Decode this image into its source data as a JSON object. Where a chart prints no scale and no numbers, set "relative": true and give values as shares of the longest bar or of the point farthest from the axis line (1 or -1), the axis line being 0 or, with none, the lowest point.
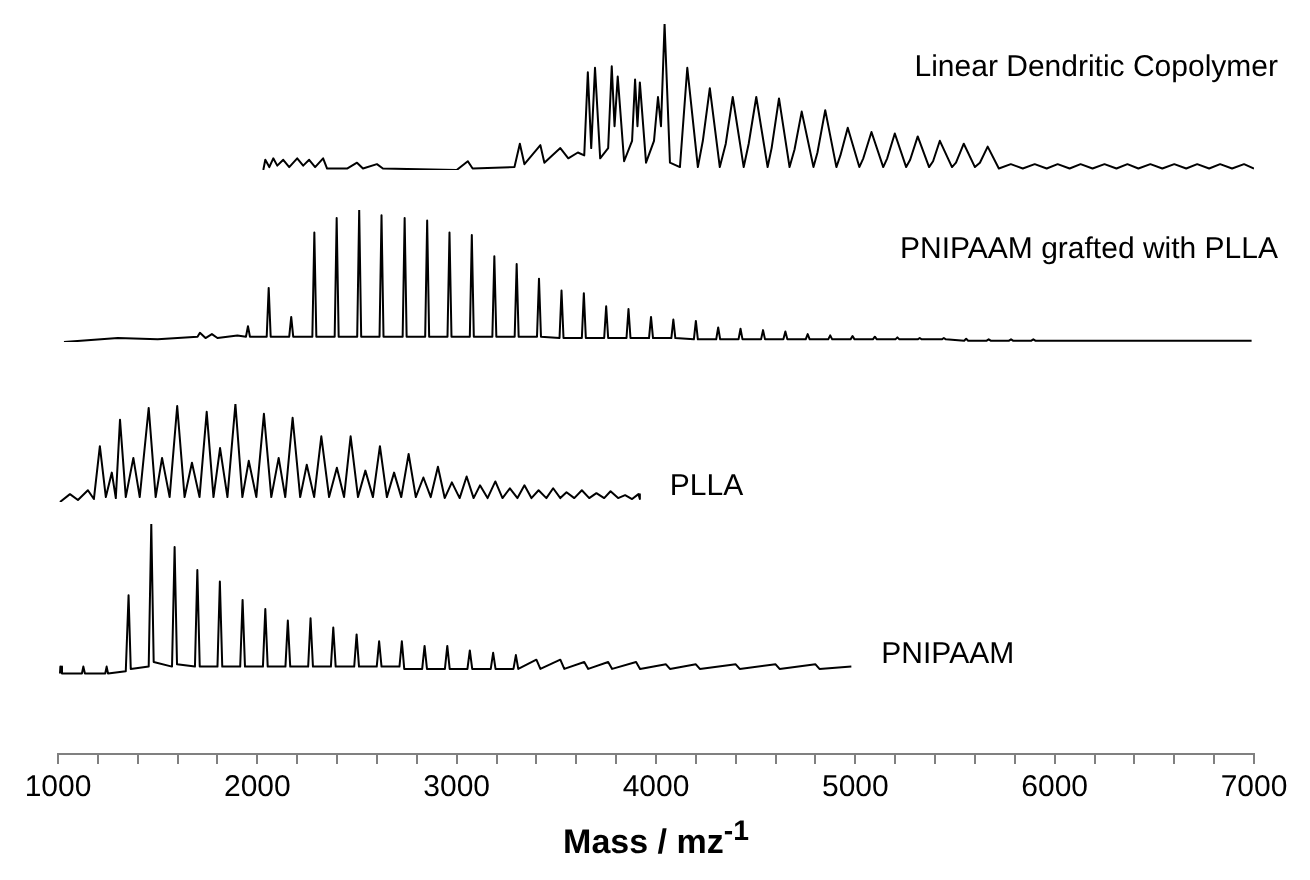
{
  "chart_data": [
    {
      "type": "line",
      "relative": true,
      "xlim": [
        1000,
        7000
      ],
      "tick_labels": false,
      "grid": false,
      "legend": false,
      "marker": "none",
      "line_style": "solid",
      "series": [
        {
          "name": "Linear Dendritic Copolymer",
          "color": "#000000",
          "x": [
            2030,
            2040,
            2060,
            2080,
            2100,
            2130,
            2160,
            2200,
            2230,
            2260,
            2290,
            2330,
            2350,
            2450,
            2500,
            2530,
            2600,
            2630,
            3000,
            3056,
            3080,
            3290,
            3317,
            3340,
            3420,
            3440,
            3520,
            3560,
            3608,
            3640,
            3658,
            3675,
            3694,
            3720,
            3760,
            3778,
            3792,
            3808,
            3840,
            3880,
            3895,
            3907,
            3919,
            3950,
            3990,
            4010,
            4025,
            4043,
            4070,
            4120,
            4157,
            4210,
            4235,
            4270,
            4320,
            4350,
            4385,
            4440,
            4465,
            4503,
            4560,
            4580,
            4617,
            4670,
            4695,
            4731,
            4790,
            4810,
            4849,
            4905,
            4925,
            4962,
            5020,
            5040,
            5081,
            5140,
            5160,
            5198,
            5255,
            5275,
            5313,
            5370,
            5390,
            5424,
            5485,
            5505,
            5544,
            5600,
            5625,
            5664,
            5720,
            5780,
            5840,
            5900,
            5960,
            6015,
            6075,
            6130,
            6190,
            6250,
            6310,
            6365,
            6420,
            6480,
            6540,
            6600,
            6660,
            6715,
            6775,
            6830,
            6890,
            6950,
            7000
          ],
          "values": [
            0,
            0.07,
            0.02,
            0.08,
            0.03,
            0.07,
            0.02,
            0.08,
            0.03,
            0.07,
            0.02,
            0.08,
            0.01,
            0.01,
            0.05,
            0.01,
            0.04,
            0.01,
            0,
            0.06,
            0.01,
            0.02,
            0.18,
            0.04,
            0.17,
            0.05,
            0.15,
            0.08,
            0.12,
            0.1,
            0.67,
            0.15,
            0.7,
            0.08,
            0.15,
            0.71,
            0.3,
            0.64,
            0.06,
            0.2,
            0.62,
            0.3,
            0.6,
            0.05,
            0.2,
            0.5,
            0.3,
            1.0,
            0.05,
            0.02,
            0.7,
            0.02,
            0.2,
            0.56,
            0.02,
            0.18,
            0.5,
            0.02,
            0.18,
            0.5,
            0.02,
            0.15,
            0.49,
            0.02,
            0.14,
            0.4,
            0.02,
            0.12,
            0.41,
            0.02,
            0.1,
            0.29,
            0.02,
            0.08,
            0.26,
            0.02,
            0.08,
            0.25,
            0.02,
            0.07,
            0.23,
            0.02,
            0.06,
            0.2,
            0.02,
            0.05,
            0.18,
            0.02,
            0.05,
            0.16,
            0.01,
            0.04,
            0.01,
            0.04,
            0.01,
            0.04,
            0.01,
            0.04,
            0.01,
            0.04,
            0.01,
            0.04,
            0.01,
            0.04,
            0.01,
            0.04,
            0.01,
            0.04,
            0.01,
            0.04,
            0.01,
            0.04,
            0.01
          ]
        }
      ]
    },
    {
      "type": "line",
      "relative": true,
      "xlim": [
        1000,
        7000
      ],
      "tick_labels": false,
      "grid": false,
      "legend": false,
      "marker": "none",
      "line_style": "solid",
      "series": [
        {
          "name": "PNIPAAM grafted with PLLA",
          "color": "#000000",
          "x": [
            1030,
            1300,
            1500,
            1700,
            1712,
            1740,
            1772,
            1800,
            1900,
            1943,
            1953,
            1963,
            2047,
            2057,
            2067,
            2160,
            2170,
            2180,
            2276,
            2286,
            2296,
            2388,
            2398,
            2408,
            2501,
            2511,
            2521,
            2613,
            2623,
            2633,
            2729,
            2739,
            2749,
            2842,
            2852,
            2862,
            2954,
            2964,
            2974,
            3066,
            3076,
            3086,
            3179,
            3189,
            3199,
            3291,
            3301,
            3311,
            3403,
            3413,
            3423,
            3516,
            3526,
            3536,
            3628,
            3638,
            3648,
            3740,
            3750,
            3760,
            3852,
            3862,
            3872,
            3965,
            3975,
            3985,
            4077,
            4087,
            4097,
            4190,
            4200,
            4210,
            4302,
            4312,
            4322,
            4414,
            4424,
            4434,
            4527,
            4537,
            4547,
            4639,
            4649,
            4659,
            4751,
            4761,
            4771,
            4864,
            4874,
            4884,
            4976,
            4986,
            4996,
            5088,
            5098,
            5108,
            5201,
            5211,
            5221,
            5313,
            5323,
            5333,
            5434,
            5444,
            5454,
            5546,
            5556,
            5566,
            5659,
            5669,
            5679,
            5771,
            5781,
            5791,
            5883,
            5893,
            5903,
            6988
          ],
          "values": [
            0,
            0.03,
            0.02,
            0.04,
            0.07,
            0.03,
            0.06,
            0.03,
            0.05,
            0.04,
            0.12,
            0.04,
            0.04,
            0.41,
            0.04,
            0.04,
            0.19,
            0.04,
            0.04,
            0.83,
            0.04,
            0.04,
            0.94,
            0.04,
            0.04,
            1.0,
            0.04,
            0.04,
            0.96,
            0.04,
            0.04,
            0.94,
            0.04,
            0.04,
            0.92,
            0.04,
            0.04,
            0.83,
            0.04,
            0.04,
            0.81,
            0.04,
            0.04,
            0.65,
            0.04,
            0.04,
            0.59,
            0.04,
            0.04,
            0.48,
            0.04,
            0.03,
            0.39,
            0.03,
            0.03,
            0.37,
            0.03,
            0.03,
            0.27,
            0.03,
            0.03,
            0.25,
            0.03,
            0.03,
            0.19,
            0.03,
            0.03,
            0.17,
            0.03,
            0.02,
            0.16,
            0.02,
            0.02,
            0.11,
            0.02,
            0.02,
            0.1,
            0.02,
            0.02,
            0.09,
            0.02,
            0.02,
            0.08,
            0.02,
            0.02,
            0.06,
            0.02,
            0.02,
            0.05,
            0.02,
            0.02,
            0.045,
            0.02,
            0.02,
            0.04,
            0.02,
            0.02,
            0.035,
            0.02,
            0.02,
            0.03,
            0.02,
            0.02,
            0.03,
            0.02,
            0.01,
            0.025,
            0.01,
            0.01,
            0.02,
            0.01,
            0.01,
            0.02,
            0.01,
            0.01,
            0.02,
            0.01,
            0.01
          ]
        }
      ]
    },
    {
      "type": "line",
      "relative": true,
      "xlim": [
        1000,
        7000
      ],
      "tick_labels": false,
      "grid": false,
      "legend": false,
      "marker": "none",
      "line_style": "solid",
      "series": [
        {
          "name": "PLLA",
          "color": "#000000",
          "x": [
            1010,
            1060,
            1100,
            1150,
            1180,
            1210,
            1240,
            1270,
            1290,
            1311,
            1340,
            1378,
            1410,
            1455,
            1490,
            1522,
            1560,
            1598,
            1635,
            1672,
            1710,
            1746,
            1780,
            1813,
            1850,
            1890,
            1925,
            1957,
            1995,
            2033,
            2070,
            2107,
            2140,
            2177,
            2215,
            2248,
            2285,
            2321,
            2360,
            2399,
            2435,
            2468,
            2505,
            2542,
            2580,
            2615,
            2650,
            2686,
            2722,
            2759,
            2795,
            2833,
            2870,
            2906,
            2940,
            2976,
            3015,
            3050,
            3085,
            3117,
            3155,
            3194,
            3230,
            3267,
            3305,
            3340,
            3375,
            3411,
            3450,
            3484,
            3520,
            3551,
            3590,
            3628,
            3665,
            3701,
            3740,
            3772,
            3810,
            3845,
            3880,
            3912,
            3919
          ],
          "values": [
            0,
            0.08,
            0.02,
            0.12,
            0.03,
            0.57,
            0.05,
            0.3,
            0.04,
            0.84,
            0.05,
            0.45,
            0.05,
            0.96,
            0.05,
            0.45,
            0.05,
            0.98,
            0.05,
            0.4,
            0.05,
            0.92,
            0.05,
            0.55,
            0.05,
            1.0,
            0.05,
            0.42,
            0.05,
            0.9,
            0.05,
            0.45,
            0.05,
            0.86,
            0.05,
            0.38,
            0.05,
            0.67,
            0.05,
            0.35,
            0.05,
            0.67,
            0.05,
            0.32,
            0.05,
            0.57,
            0.05,
            0.3,
            0.05,
            0.49,
            0.05,
            0.25,
            0.05,
            0.36,
            0.04,
            0.2,
            0.04,
            0.26,
            0.04,
            0.17,
            0.04,
            0.21,
            0.04,
            0.14,
            0.04,
            0.17,
            0.04,
            0.12,
            0.04,
            0.14,
            0.04,
            0.1,
            0.04,
            0.12,
            0.04,
            0.09,
            0.04,
            0.11,
            0.04,
            0.07,
            0.03,
            0.08,
            0.03
          ]
        }
      ]
    },
    {
      "type": "line",
      "relative": true,
      "xlim": [
        1000,
        7000
      ],
      "tick_labels": "x",
      "grid": false,
      "legend": false,
      "marker": "none",
      "line_style": "solid",
      "xlabel": "Mass / mz$^{-1}$",
      "xticks": [
        1000,
        {
          "value": 1200,
          "label": null
        },
        {
          "value": 1400,
          "label": null
        },
        {
          "value": 1600,
          "label": null
        },
        {
          "value": 1800,
          "label": null
        },
        2000,
        {
          "value": 2200,
          "label": null
        },
        {
          "value": 2400,
          "label": null
        },
        {
          "value": 2600,
          "label": null
        },
        {
          "value": 2800,
          "label": null
        },
        3000,
        {
          "value": 3200,
          "label": null
        },
        {
          "value": 3400,
          "label": null
        },
        {
          "value": 3600,
          "label": null
        },
        {
          "value": 3800,
          "label": null
        },
        4000,
        {
          "value": 4200,
          "label": null
        },
        {
          "value": 4400,
          "label": null
        },
        {
          "value": 4600,
          "label": null
        },
        {
          "value": 4800,
          "label": null
        },
        5000,
        {
          "value": 5200,
          "label": null
        },
        {
          "value": 5400,
          "label": null
        },
        {
          "value": 5600,
          "label": null
        },
        {
          "value": 5800,
          "label": null
        },
        6000,
        {
          "value": 6200,
          "label": null
        },
        {
          "value": 6400,
          "label": null
        },
        {
          "value": 6600,
          "label": null
        },
        {
          "value": 6800,
          "label": null
        },
        7000
      ],
      "series": [
        {
          "name": "PNIPAAM",
          "color": "#000000",
          "x": [
            1010,
            1012,
            1020,
            1120,
            1127,
            1135,
            1237,
            1244,
            1251,
            1340,
            1354,
            1365,
            1455,
            1468,
            1480,
            1572,
            1585,
            1597,
            1687,
            1699,
            1711,
            1800,
            1812,
            1824,
            1914,
            1926,
            1938,
            2028,
            2040,
            2052,
            2141,
            2153,
            2165,
            2255,
            2267,
            2279,
            2369,
            2381,
            2393,
            2486,
            2498,
            2510,
            2599,
            2611,
            2623,
            2713,
            2725,
            2737,
            2827,
            2839,
            2851,
            2941,
            2953,
            2965,
            3054,
            3066,
            3078,
            3171,
            3183,
            3195,
            3285,
            3297,
            3309,
            3400,
            3420,
            3520,
            3540,
            3640,
            3660,
            3760,
            3780,
            3900,
            3920,
            4050,
            4070,
            4200,
            4220,
            4400,
            4420,
            4600,
            4620,
            4800,
            4820,
            4980
          ],
          "values": [
            0.35,
            0.38,
            0.35,
            0.35,
            0.38,
            0.35,
            0.35,
            0.38,
            0.35,
            0.36,
            0.69,
            0.37,
            0.38,
            1.0,
            0.4,
            0.38,
            0.9,
            0.39,
            0.38,
            0.8,
            0.38,
            0.38,
            0.75,
            0.38,
            0.38,
            0.67,
            0.38,
            0.38,
            0.63,
            0.38,
            0.38,
            0.58,
            0.38,
            0.38,
            0.59,
            0.38,
            0.38,
            0.55,
            0.38,
            0.38,
            0.52,
            0.38,
            0.38,
            0.49,
            0.38,
            0.38,
            0.49,
            0.37,
            0.37,
            0.47,
            0.37,
            0.37,
            0.47,
            0.37,
            0.37,
            0.45,
            0.37,
            0.37,
            0.44,
            0.37,
            0.37,
            0.43,
            0.37,
            0.41,
            0.37,
            0.41,
            0.37,
            0.4,
            0.37,
            0.4,
            0.37,
            0.4,
            0.37,
            0.39,
            0.37,
            0.39,
            0.37,
            0.39,
            0.37,
            0.39,
            0.37,
            0.39,
            0.37,
            0.38
          ]
        }
      ]
    }
  ]
}
